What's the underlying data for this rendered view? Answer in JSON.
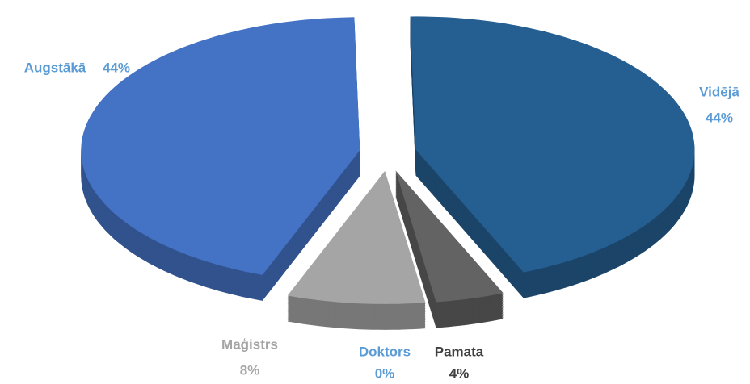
{
  "chart_data": {
    "type": "pie3d",
    "categories": [
      "Vidējā",
      "Pamata",
      "Doktors",
      "Maģistrs",
      "Augstākā"
    ],
    "values": [
      44,
      4,
      0,
      8,
      44
    ],
    "value_labels": [
      "44%",
      "4%",
      "0%",
      "8%",
      "44%"
    ],
    "colors": [
      "#255e91",
      "#636363",
      "#5b9bd5",
      "#a5a5a5",
      "#4472c4"
    ],
    "label_colors": [
      "#5b9bd5",
      "#404040",
      "#5b9bd5",
      "#a5a5a5",
      "#5b9bd5"
    ]
  }
}
